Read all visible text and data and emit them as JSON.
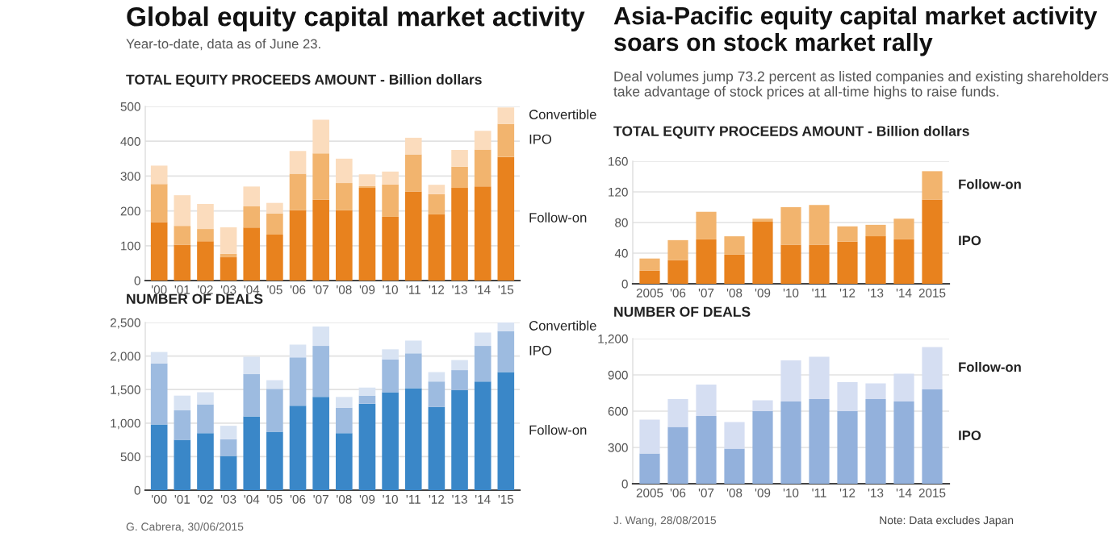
{
  "chart_data": [
    {
      "type": "bar",
      "stacked": true,
      "title": "Global equity capital market activity",
      "subtitle": "Year-to-date, data as of June 23.",
      "ylabel": "TOTAL EQUITY PROCEEDS AMOUNT - Billion dollars",
      "categories": [
        "'00",
        "'01",
        "'02",
        "'03",
        "'04",
        "'05",
        "'06",
        "'07",
        "'08",
        "'09",
        "'10",
        "'11",
        "'12",
        "'13",
        "'14",
        "'15"
      ],
      "series": [
        {
          "name": "Follow-on",
          "color": "#e8821e",
          "values": [
            168,
            103,
            113,
            67,
            152,
            132,
            202,
            232,
            202,
            266,
            183,
            256,
            190,
            266,
            270,
            355
          ]
        },
        {
          "name": "IPO",
          "color": "#f2b46e",
          "values": [
            109,
            54,
            35,
            10,
            61,
            61,
            105,
            133,
            78,
            5,
            93,
            106,
            58,
            61,
            106,
            95
          ]
        },
        {
          "name": "Convertible",
          "color": "#fbdcbd",
          "values": [
            53,
            88,
            72,
            76,
            57,
            30,
            65,
            97,
            70,
            34,
            37,
            48,
            27,
            48,
            54,
            47
          ]
        }
      ],
      "ylim": [
        0,
        500
      ],
      "yticks": [
        0,
        100,
        200,
        300,
        400,
        500
      ],
      "grid": "y",
      "legend": false
    },
    {
      "type": "bar",
      "stacked": true,
      "ylabel": "NUMBER OF DEALS",
      "categories": [
        "'00",
        "'01",
        "'02",
        "'03",
        "'04",
        "'05",
        "'06",
        "'07",
        "'08",
        "'09",
        "'10",
        "'11",
        "'12",
        "'13",
        "'14",
        "'15"
      ],
      "series": [
        {
          "name": "Follow-on",
          "color": "#3a87c8",
          "values": [
            980,
            750,
            850,
            510,
            1100,
            870,
            1260,
            1390,
            850,
            1290,
            1460,
            1520,
            1240,
            1490,
            1620,
            1760
          ]
        },
        {
          "name": "IPO",
          "color": "#9dbbe0",
          "values": [
            910,
            440,
            430,
            250,
            630,
            640,
            720,
            760,
            380,
            120,
            490,
            520,
            380,
            300,
            530,
            610
          ]
        },
        {
          "name": "Convertible",
          "color": "#d8e3f3",
          "values": [
            170,
            220,
            180,
            200,
            260,
            130,
            190,
            290,
            160,
            120,
            150,
            190,
            140,
            150,
            200,
            130
          ]
        }
      ],
      "ylim": [
        0,
        2500
      ],
      "yticks": [
        0,
        500,
        {
          "value": 1000,
          "label": "1,000"
        },
        {
          "value": 1500,
          "label": "1,500"
        },
        {
          "value": 2000,
          "label": "2,000"
        },
        {
          "value": 2500,
          "label": "2,500"
        }
      ],
      "grid": "y",
      "legend": false,
      "annotations": [
        "G. Cabrera, 30/06/2015"
      ]
    },
    {
      "type": "bar",
      "stacked": true,
      "title": "Asia-Pacific equity capital market activity soars on stock market rally",
      "subtitle": "Deal volumes jump 73.2 percent as listed companies and existing shareholders take advantage of stock prices at all-time highs to raise funds.",
      "ylabel": "TOTAL EQUITY PROCEEDS AMOUNT - Billion dollars",
      "categories": [
        "2005",
        "'06",
        "'07",
        "'08",
        "'09",
        "'10",
        "'11",
        "'12",
        "'13",
        "'14",
        "2015"
      ],
      "series": [
        {
          "name": "IPO",
          "color": "#e8821e",
          "values": [
            17,
            31,
            58,
            38,
            81,
            51,
            51,
            55,
            62,
            58,
            110
          ]
        },
        {
          "name": "Follow-on",
          "color": "#f2b46e",
          "values": [
            16,
            26,
            36,
            24,
            4,
            49,
            52,
            20,
            15,
            27,
            37
          ]
        }
      ],
      "ylim": [
        0,
        160
      ],
      "yticks": [
        0,
        40,
        80,
        120,
        160
      ],
      "grid": "y",
      "legend": false
    },
    {
      "type": "bar",
      "stacked": true,
      "ylabel": "NUMBER OF DEALS",
      "categories": [
        "2005",
        "'06",
        "'07",
        "'08",
        "'09",
        "'10",
        "'11",
        "'12",
        "'13",
        "'14",
        "2015"
      ],
      "series": [
        {
          "name": "IPO",
          "color": "#93b1dc",
          "values": [
            250,
            470,
            560,
            290,
            600,
            680,
            700,
            600,
            700,
            680,
            780
          ]
        },
        {
          "name": "Follow-on",
          "color": "#d5def2",
          "values": [
            280,
            230,
            260,
            220,
            90,
            340,
            350,
            240,
            130,
            230,
            350
          ]
        }
      ],
      "ylim": [
        0,
        1200
      ],
      "yticks": [
        0,
        300,
        600,
        900,
        {
          "value": 1200,
          "label": "1,200"
        }
      ],
      "grid": "y",
      "legend": false,
      "annotations": [
        "J. Wang, 28/08/2015",
        "Note: Data excludes Japan"
      ]
    }
  ]
}
